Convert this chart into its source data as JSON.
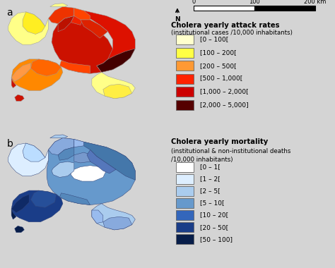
{
  "background_color": "#d4d4d4",
  "fig_width": 4.74,
  "fig_height": 3.8,
  "dpi": 100,
  "panel_a_label": "a",
  "panel_b_label": "b",
  "title_a": "Cholera yearly attack rates",
  "subtitle_a": "(institutional cases /10,000 inhabitants)",
  "title_b": "Cholera yearly mortality",
  "subtitle_b1": "(institutional & non-institutional deaths",
  "subtitle_b2": "/10,000 inhabitants)",
  "attack_colors": [
    "#ffffcc",
    "#ffff44",
    "#ff9933",
    "#ff2200",
    "#cc0000",
    "#550000"
  ],
  "attack_labels": [
    "[0 – 100[",
    "[100 – 200[",
    "[200 – 500[",
    "[500 – 1,000[",
    "[1,000 – 2,000[",
    "[2,000 – 5,000]"
  ],
  "mortality_colors": [
    "#ffffff",
    "#ddeeff",
    "#aaccee",
    "#6699cc",
    "#3366bb",
    "#1a3d88",
    "#071d49"
  ],
  "mortality_labels": [
    "[0 – 1[",
    "[1 – 2[",
    "[2 – 5[",
    "[5 – 10[",
    "[10 – 20[",
    "[20 – 50[",
    "[50 – 100]"
  ]
}
